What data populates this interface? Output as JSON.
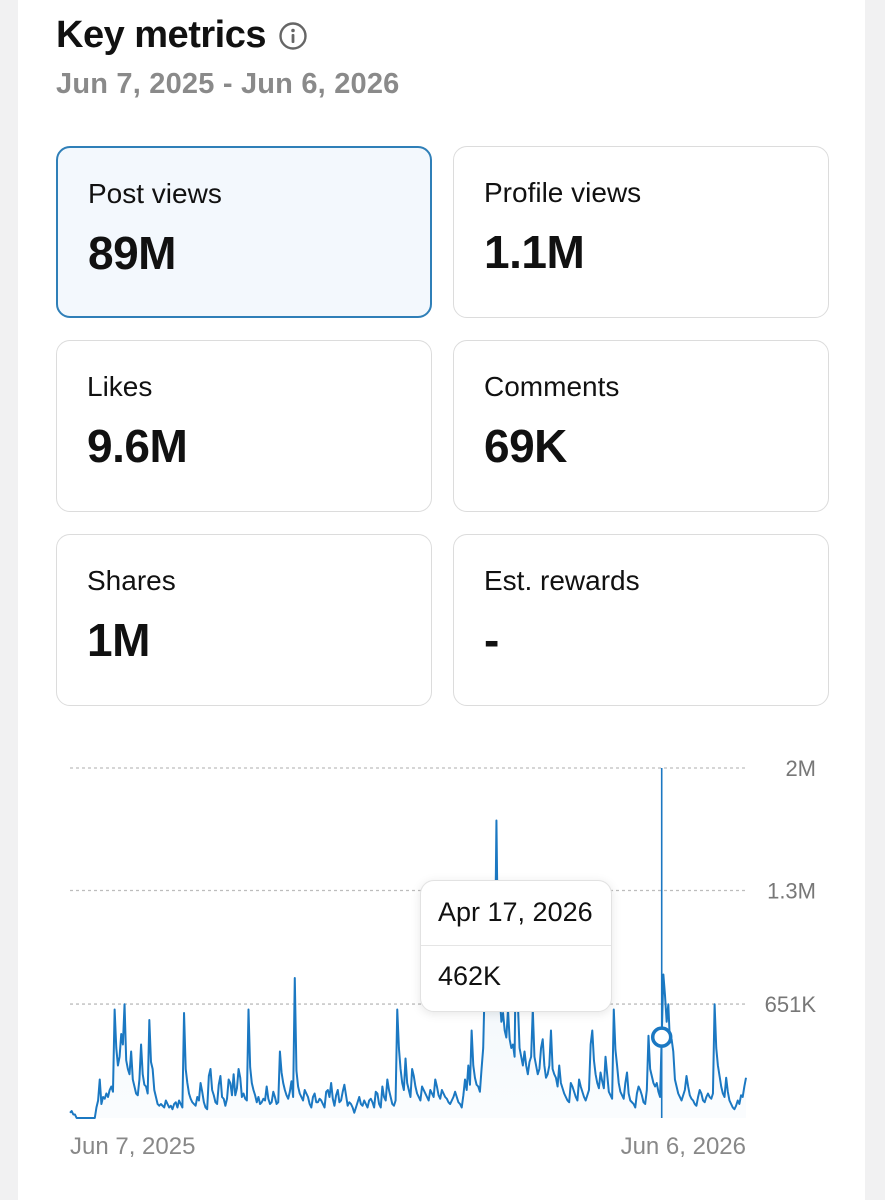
{
  "header": {
    "title": "Key metrics",
    "date_range": "Jun 7, 2025 - Jun 6, 2026",
    "info_icon": "info-circle-icon"
  },
  "metrics": [
    {
      "label": "Post views",
      "value": "89M",
      "selected": true
    },
    {
      "label": "Profile views",
      "value": "1.1M",
      "selected": false
    },
    {
      "label": "Likes",
      "value": "9.6M",
      "selected": false
    },
    {
      "label": "Comments",
      "value": "69K",
      "selected": false
    },
    {
      "label": "Shares",
      "value": "1M",
      "selected": false
    },
    {
      "label": "Est. rewards",
      "value": "-",
      "selected": false
    }
  ],
  "tooltip": {
    "date": "Apr 17, 2026",
    "value": "462K"
  },
  "colors": {
    "accent": "#1b78c2",
    "active_card_bg": "#f3f8fd",
    "active_card_border": "#2f7fb8"
  },
  "chart_data": {
    "type": "area",
    "x_start_label": "Jun 7, 2025",
    "x_end_label": "Jun 6, 2026",
    "y_tick_labels": [
      "651K",
      "1.3M",
      "2M"
    ],
    "y_ticks": [
      651000,
      1300000,
      2000000
    ],
    "ylim": [
      0,
      2000000
    ],
    "grid": true,
    "selected_point": {
      "label": "Apr 17, 2026",
      "value": 462000
    },
    "series": [
      {
        "values": [
          30000,
          40000,
          20000,
          20000,
          0,
          0,
          0,
          0,
          0,
          0,
          0,
          0,
          0,
          0,
          0,
          0,
          60000,
          100000,
          220000,
          80000,
          120000,
          110000,
          140000,
          120000,
          160000,
          180000,
          150000,
          620000,
          400000,
          300000,
          350000,
          480000,
          420000,
          650000,
          330000,
          280000,
          250000,
          380000,
          220000,
          180000,
          140000,
          130000,
          220000,
          420000,
          250000,
          190000,
          180000,
          140000,
          560000,
          320000,
          280000,
          160000,
          120000,
          80000,
          70000,
          80000,
          70000,
          60000,
          100000,
          80000,
          60000,
          70000,
          50000,
          80000,
          90000,
          60000,
          100000,
          80000,
          60000,
          600000,
          280000,
          200000,
          140000,
          110000,
          90000,
          80000,
          70000,
          120000,
          100000,
          200000,
          150000,
          90000,
          60000,
          50000,
          240000,
          280000,
          160000,
          130000,
          90000,
          80000,
          190000,
          240000,
          120000,
          110000,
          70000,
          110000,
          220000,
          200000,
          130000,
          250000,
          130000,
          170000,
          280000,
          230000,
          120000,
          140000,
          110000,
          100000,
          620000,
          290000,
          200000,
          160000,
          130000,
          90000,
          120000,
          80000,
          90000,
          110000,
          100000,
          180000,
          110000,
          80000,
          90000,
          150000,
          120000,
          80000,
          90000,
          380000,
          260000,
          200000,
          160000,
          130000,
          110000,
          150000,
          210000,
          120000,
          800000,
          270000,
          180000,
          140000,
          120000,
          100000,
          160000,
          140000,
          120000,
          80000,
          60000,
          120000,
          140000,
          90000,
          90000,
          110000,
          100000,
          80000,
          60000,
          150000,
          160000,
          120000,
          200000,
          110000,
          70000,
          130000,
          160000,
          90000,
          100000,
          150000,
          190000,
          130000,
          70000,
          90000,
          80000,
          60000,
          30000,
          60000,
          90000,
          120000,
          80000,
          70000,
          100000,
          80000,
          60000,
          100000,
          110000,
          90000,
          60000,
          150000,
          140000,
          80000,
          60000,
          180000,
          120000,
          100000,
          220000,
          160000,
          120000,
          80000,
          70000,
          100000,
          620000,
          400000,
          280000,
          200000,
          160000,
          340000,
          200000,
          160000,
          120000,
          280000,
          240000,
          180000,
          140000,
          120000,
          100000,
          180000,
          160000,
          140000,
          120000,
          100000,
          160000,
          140000,
          120000,
          220000,
          180000,
          130000,
          110000,
          160000,
          140000,
          120000,
          110000,
          90000,
          80000,
          100000,
          120000,
          150000,
          120000,
          90000,
          80000,
          60000,
          130000,
          220000,
          160000,
          300000,
          190000,
          500000,
          300000,
          230000,
          190000,
          180000,
          150000,
          280000,
          400000,
          800000,
          1000000,
          700000,
          1250000,
          800000,
          1100000,
          800000,
          1700000,
          900000,
          700000,
          550000,
          600000,
          500000,
          460000,
          620000,
          450000,
          400000,
          420000,
          350000,
          1200000,
          650000,
          400000,
          350000,
          300000,
          380000,
          300000,
          250000,
          320000,
          350000,
          620000,
          350000,
          300000,
          250000,
          280000,
          400000,
          450000,
          300000,
          230000,
          250000,
          300000,
          500000,
          280000,
          250000,
          230000,
          180000,
          300000,
          200000,
          170000,
          140000,
          120000,
          100000,
          90000,
          200000,
          180000,
          150000,
          120000,
          100000,
          220000,
          180000,
          150000,
          120000,
          100000,
          130000,
          160000,
          420000,
          500000,
          330000,
          250000,
          200000,
          170000,
          260000,
          210000,
          170000,
          350000,
          250000,
          150000,
          130000,
          110000,
          620000,
          390000,
          300000,
          200000,
          150000,
          130000,
          110000,
          200000,
          260000,
          140000,
          100000,
          90000,
          80000,
          60000,
          140000,
          180000,
          160000,
          130000,
          90000,
          80000,
          160000,
          470000,
          280000,
          240000,
          200000,
          180000,
          200000,
          150000,
          120000,
          462000,
          820000,
          700000,
          550000,
          650000,
          430000,
          450000,
          380000,
          220000,
          180000,
          140000,
          120000,
          100000,
          130000,
          160000,
          240000,
          180000,
          130000,
          110000,
          100000,
          80000,
          70000,
          120000,
          160000,
          140000,
          100000,
          90000,
          120000,
          140000,
          120000,
          110000,
          140000,
          650000,
          400000,
          300000,
          240000,
          180000,
          140000,
          120000,
          230000,
          150000,
          100000,
          80000,
          60000,
          50000,
          70000,
          100000,
          80000,
          130000,
          120000,
          180000,
          230000
        ]
      }
    ]
  }
}
